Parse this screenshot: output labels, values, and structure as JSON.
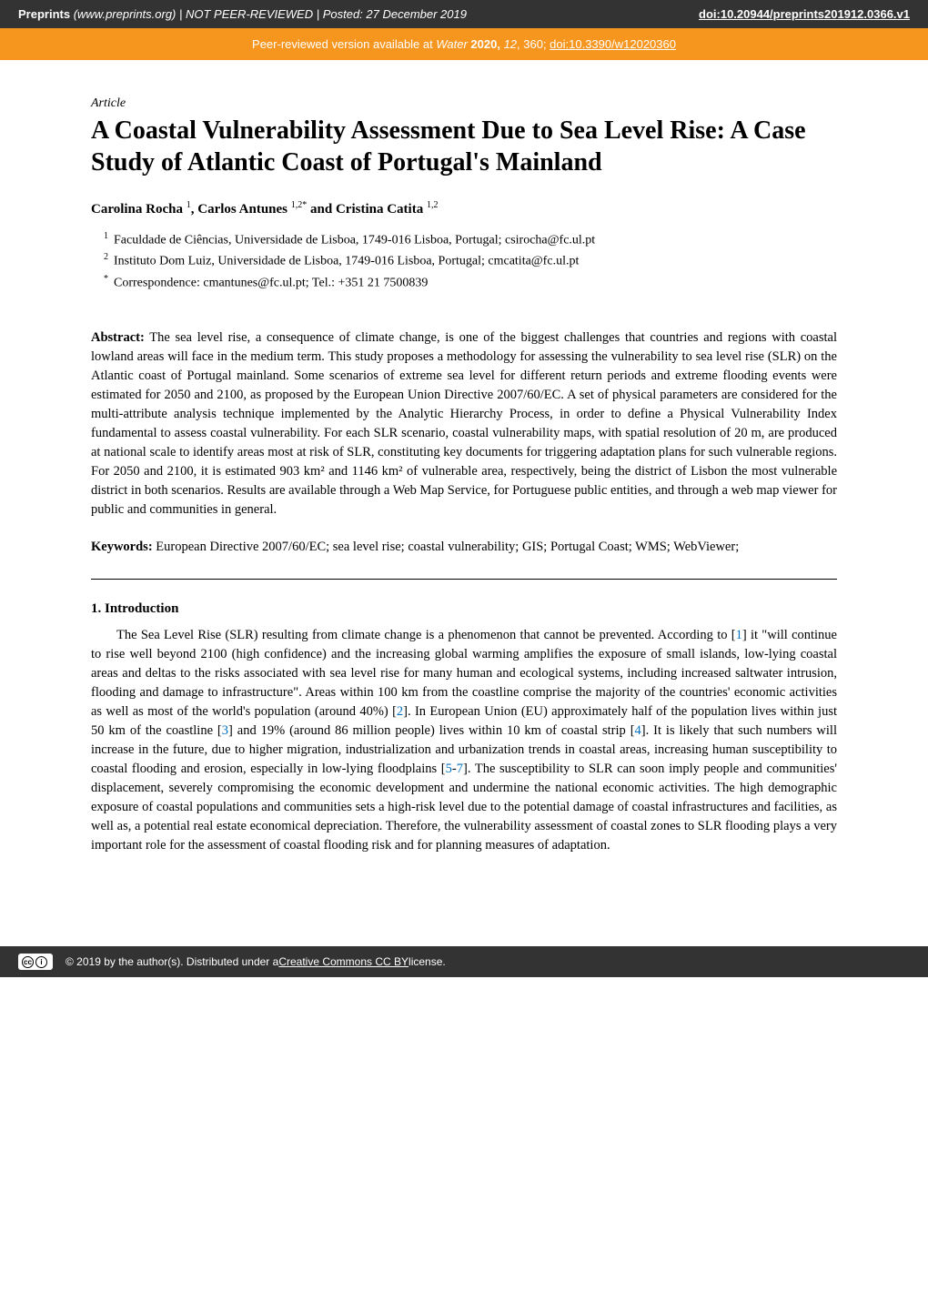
{
  "topbar": {
    "site_italic": "Preprints",
    "site_rest": " (www.preprints.org)  |  NOT PEER-REVIEWED  |  Posted: 27 December 2019",
    "doi_label": "doi:10.20944/preprints201912.0366.v1"
  },
  "orangebar": {
    "prefix": "Peer-reviewed version available at ",
    "journal": "Water",
    "year_vol": " 2020, ",
    "issue": "12",
    "pages": ", 360; ",
    "doi": "doi:10.3390/w12020360"
  },
  "article_type": "Article",
  "title": "A Coastal Vulnerability Assessment Due to Sea Level Rise: A Case Study of Atlantic Coast of Portugal's Mainland",
  "authors_html": "Carolina Rocha <sup>1</sup>, Carlos Antunes <sup>1,2*</sup> and Cristina Catita <sup>1,2</sup>",
  "affiliations": [
    {
      "marker": "1",
      "text": "Faculdade de Ciências, Universidade de Lisboa, 1749-016 Lisboa, Portugal; csirocha@fc.ul.pt"
    },
    {
      "marker": "2",
      "text": "Instituto Dom Luiz, Universidade de Lisboa, 1749-016 Lisboa, Portugal; cmcatita@fc.ul.pt"
    },
    {
      "marker": "*",
      "text": "Correspondence: cmantunes@fc.ul.pt; Tel.: +351 21 7500839"
    }
  ],
  "abstract_label": "Abstract:",
  "abstract_text": " The sea level rise, a consequence of climate change, is one of the biggest challenges that countries and regions with coastal lowland areas will face in the medium term. This study proposes a methodology for assessing the vulnerability to sea level rise (SLR) on the Atlantic coast of Portugal mainland. Some scenarios of extreme sea level for different return periods and extreme flooding events were estimated for 2050 and 2100, as proposed by the European Union Directive 2007/60/EC. A set of physical parameters are considered for the multi-attribute analysis technique implemented by the Analytic Hierarchy Process, in order to define a Physical Vulnerability Index fundamental to assess coastal vulnerability. For each SLR scenario, coastal vulnerability maps, with spatial resolution of 20 m, are produced at national scale to identify areas most at risk of SLR, constituting key documents for triggering adaptation plans for such vulnerable regions. For 2050 and 2100, it is estimated 903 km² and 1146 km² of vulnerable area, respectively, being the district of Lisbon the most vulnerable district in both scenarios. Results are available through a Web Map Service, for Portuguese public entities, and through a web map viewer for public and communities in general.",
  "keywords_label": "Keywords:",
  "keywords_text": " European Directive 2007/60/EC; sea level rise; coastal vulnerability; GIS; Portugal Coast; WMS; WebViewer;",
  "section_1_heading": "1. Introduction",
  "intro_segments": [
    "The Sea Level Rise (SLR) resulting from climate change is a phenomenon that cannot be prevented. According to [",
    {
      "ref": "1"
    },
    "] it \"will continue to rise well beyond 2100 (high confidence) and the increasing global warming amplifies the exposure of small islands, low-lying coastal areas and deltas to the risks associated with sea level rise for many human and ecological systems, including increased saltwater intrusion, flooding and damage to infrastructure\". Areas within 100 km from the coastline comprise the majority of the countries' economic activities as well as most of the world's population (around 40%) [",
    {
      "ref": "2"
    },
    "]. In European Union (EU) approximately half of the population lives within just 50 km of the coastline [",
    {
      "ref": "3"
    },
    "] and 19% (around 86 million people) lives within 10 km of coastal strip [",
    {
      "ref": "4"
    },
    "]. It is likely that such numbers will increase in the future, due to higher migration, industrialization and urbanization trends in coastal areas, increasing human susceptibility to coastal flooding and erosion, especially in low-lying floodplains [",
    {
      "ref": "5"
    },
    "-",
    {
      "ref": "7"
    },
    "]. The susceptibility to SLR can soon imply people and communities' displacement, severely compromising the economic development and undermine the national economic activities. The high demographic exposure of coastal populations and communities sets a high-risk level due to the potential damage of coastal infrastructures and facilities, as well as, a potential real estate economical depreciation. Therefore, the vulnerability assessment of coastal zones to SLR flooding plays a very important role for the assessment of coastal flooding risk and for planning measures of adaptation."
  ],
  "footer": {
    "cc_text": "cc",
    "by_glyph": "①",
    "copyright": "© 2019 by the author(s). Distributed under a ",
    "license_link": "Creative Commons CC BY",
    "license_suffix": " license."
  },
  "colors": {
    "topbar_bg": "#333333",
    "orange_bg": "#f7961e",
    "ref_color": "#0070c0"
  }
}
